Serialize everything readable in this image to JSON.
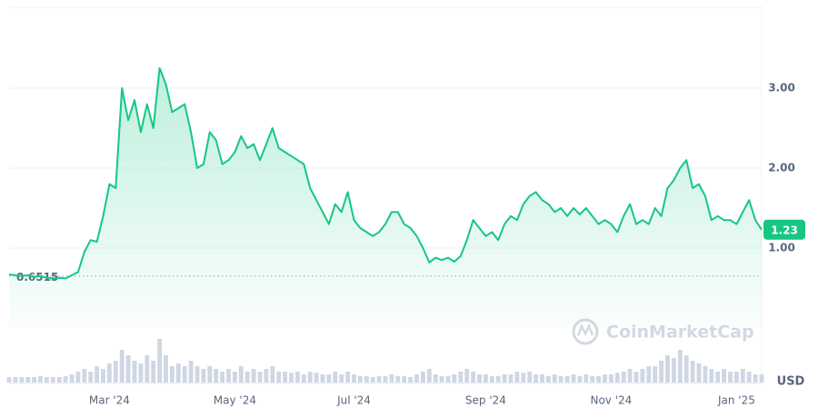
{
  "chart_data": {
    "type": "area",
    "categories": [
      null,
      null,
      null,
      null,
      null,
      null,
      null,
      null,
      null,
      null,
      null,
      null,
      null,
      null,
      null,
      null,
      "Mar '24",
      null,
      null,
      null,
      null,
      null,
      null,
      null,
      null,
      null,
      null,
      null,
      null,
      null,
      null,
      null,
      null,
      null,
      null,
      null,
      "May '24",
      null,
      null,
      null,
      null,
      null,
      null,
      null,
      null,
      null,
      null,
      null,
      null,
      null,
      null,
      null,
      null,
      null,
      null,
      "Jul '24",
      null,
      null,
      null,
      null,
      null,
      null,
      null,
      null,
      null,
      null,
      null,
      null,
      null,
      null,
      null,
      null,
      null,
      null,
      null,
      null,
      "Sep '24",
      null,
      null,
      null,
      null,
      null,
      null,
      null,
      null,
      null,
      null,
      null,
      null,
      null,
      null,
      null,
      null,
      null,
      null,
      null,
      "Nov '24",
      null,
      null,
      null,
      null,
      null,
      null,
      null,
      null,
      null,
      null,
      null,
      null,
      null,
      null,
      null,
      null,
      null,
      null,
      null,
      "Jan '25",
      null,
      null,
      null,
      null
    ],
    "series": [
      {
        "color": "#16c784",
        "values": [
          0.67,
          0.66,
          0.65,
          0.66,
          0.64,
          0.65,
          0.63,
          0.62,
          0.63,
          0.62,
          0.66,
          0.7,
          0.95,
          1.1,
          1.08,
          1.4,
          1.8,
          1.75,
          3.0,
          2.6,
          2.85,
          2.45,
          2.8,
          2.5,
          3.25,
          3.05,
          2.7,
          2.75,
          2.8,
          2.45,
          2.0,
          2.05,
          2.45,
          2.35,
          2.05,
          2.1,
          2.2,
          2.4,
          2.25,
          2.3,
          2.1,
          2.3,
          2.5,
          2.25,
          2.2,
          2.15,
          2.1,
          2.05,
          1.75,
          1.6,
          1.45,
          1.3,
          1.55,
          1.45,
          1.7,
          1.35,
          1.25,
          1.2,
          1.15,
          1.2,
          1.3,
          1.45,
          1.45,
          1.3,
          1.25,
          1.15,
          1.0,
          0.82,
          0.88,
          0.85,
          0.88,
          0.83,
          0.9,
          1.1,
          1.35,
          1.25,
          1.15,
          1.2,
          1.1,
          1.3,
          1.4,
          1.35,
          1.55,
          1.65,
          1.7,
          1.6,
          1.55,
          1.45,
          1.5,
          1.4,
          1.5,
          1.42,
          1.5,
          1.4,
          1.3,
          1.35,
          1.3,
          1.2,
          1.4,
          1.55,
          1.3,
          1.35,
          1.3,
          1.5,
          1.4,
          1.75,
          1.85,
          2.0,
          2.1,
          1.75,
          1.8,
          1.65,
          1.35,
          1.4,
          1.35,
          1.35,
          1.3,
          1.45,
          1.6,
          1.35,
          1.23
        ]
      }
    ],
    "volume": {
      "color": "#cfd6e4",
      "ylim": [
        0,
        10
      ],
      "values": [
        1,
        1,
        1,
        1,
        1,
        1.2,
        1,
        1,
        1,
        1.2,
        1.5,
        2,
        2.5,
        2,
        3,
        2.5,
        3.5,
        4,
        6,
        5,
        4,
        3.5,
        5,
        4,
        8,
        5,
        3,
        3.5,
        3,
        4,
        3,
        2.5,
        3,
        2.5,
        2,
        2.5,
        2,
        3,
        2,
        2.5,
        2,
        2.5,
        3,
        2,
        2,
        1.8,
        2,
        1.5,
        2,
        1.8,
        1.5,
        1.5,
        2,
        1.5,
        2,
        1.5,
        1.2,
        1.2,
        1,
        1.2,
        1.2,
        1.5,
        1.2,
        1.2,
        1,
        1.5,
        2,
        2.5,
        1.5,
        1.2,
        1.2,
        1.5,
        2,
        2.5,
        2,
        1.5,
        1.5,
        1.2,
        1.2,
        1.5,
        1.5,
        2,
        1.8,
        2,
        1.5,
        1.5,
        1.2,
        1.5,
        1.2,
        1.2,
        1.5,
        1.2,
        1.5,
        1.2,
        1.2,
        1.5,
        1.5,
        1.8,
        2,
        2.5,
        2,
        2.5,
        3,
        3,
        4,
        5,
        4.5,
        6,
        5,
        4,
        3.5,
        3,
        2.5,
        2,
        2.5,
        2,
        2,
        2.5,
        2,
        1.5,
        1.5
      ]
    },
    "ylim": [
      0,
      4
    ],
    "yticks": [
      {
        "value": 1,
        "label": "1.00"
      },
      {
        "value": 2,
        "label": "2.00"
      },
      {
        "value": 3,
        "label": "3.00"
      }
    ],
    "grid": true,
    "reference_line": 0.6515,
    "last_value_label": 1.23,
    "currency": "USD",
    "watermark": "CoinMarketCap"
  }
}
